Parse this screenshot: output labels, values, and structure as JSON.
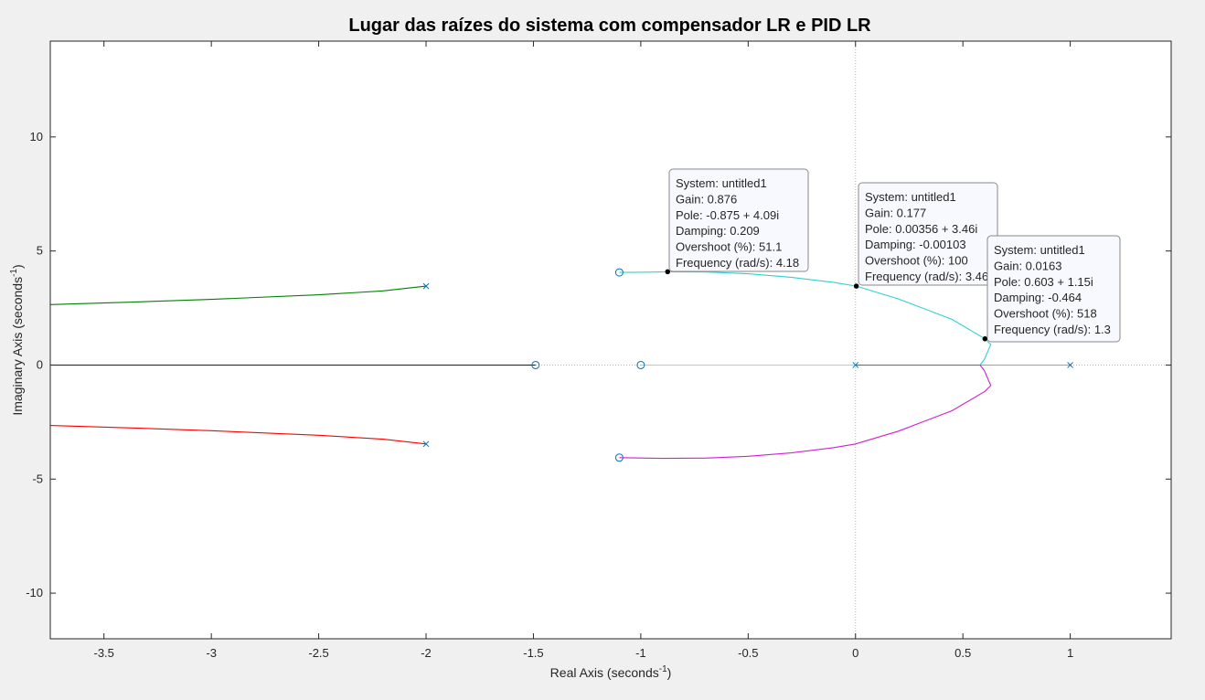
{
  "chart_data": {
    "type": "line",
    "title": "Lugar das raízes do sistema com compensador LR e PID LR",
    "xlabel": "Real Axis (seconds",
    "ylabel": "Imaginary Axis (seconds",
    "label_superscript": "-1",
    "label_close": ")",
    "xlim": [
      -3.75,
      1.47
    ],
    "ylim": [
      -12,
      14.2
    ],
    "x_ticks": [
      -3.5,
      -3,
      -2.5,
      -2,
      -1.5,
      -1,
      -0.5,
      0,
      0.5,
      1
    ],
    "x_tick_labels": [
      "-3.5",
      "-3",
      "-2.5",
      "-2",
      "-1.5",
      "-1",
      "-0.5",
      "0",
      "0.5",
      "1"
    ],
    "y_ticks": [
      -10,
      -5,
      0,
      5,
      10
    ],
    "y_tick_labels": [
      "-10",
      "-5",
      "0",
      "5",
      "10"
    ],
    "grid": false,
    "series": [
      {
        "color": "#0000ff",
        "points": [
          [
            -3.75,
            0
          ],
          [
            -1.49,
            0
          ]
        ]
      },
      {
        "color": "#ccd94a",
        "points": [
          [
            -1.0,
            0
          ],
          [
            0.0,
            0
          ]
        ]
      },
      {
        "color": "#008000",
        "points": [
          [
            -3.75,
            2.65
          ],
          [
            -3.4,
            2.75
          ],
          [
            -3.0,
            2.88
          ],
          [
            -2.5,
            3.08
          ],
          [
            -2.2,
            3.25
          ],
          [
            -2.0,
            3.46
          ]
        ]
      },
      {
        "color": "#ff0000",
        "points": [
          [
            -3.75,
            -2.65
          ],
          [
            -3.4,
            -2.75
          ],
          [
            -3.0,
            -2.88
          ],
          [
            -2.5,
            -3.08
          ],
          [
            -2.2,
            -3.25
          ],
          [
            -2.0,
            -3.46
          ]
        ]
      },
      {
        "color": "#30d0d0",
        "points": [
          [
            -1.1,
            4.06
          ],
          [
            -1.0,
            4.07
          ],
          [
            -0.875,
            4.09
          ],
          [
            -0.7,
            4.08
          ],
          [
            -0.5,
            4.0
          ],
          [
            -0.3,
            3.85
          ],
          [
            -0.1,
            3.62
          ],
          [
            0.00356,
            3.46
          ],
          [
            0.2,
            2.9
          ],
          [
            0.45,
            2.0
          ],
          [
            0.603,
            1.15
          ],
          [
            0.63,
            0.9
          ],
          [
            0.6,
            0.25
          ],
          [
            0.58,
            0.0
          ],
          [
            1.0,
            0.0
          ]
        ]
      },
      {
        "color": "#d020d0",
        "points": [
          [
            -1.1,
            -4.06
          ],
          [
            -0.9,
            -4.09
          ],
          [
            -0.7,
            -4.08
          ],
          [
            -0.5,
            -4.0
          ],
          [
            -0.3,
            -3.85
          ],
          [
            -0.1,
            -3.62
          ],
          [
            0.0,
            -3.46
          ],
          [
            0.2,
            -2.9
          ],
          [
            0.45,
            -2.0
          ],
          [
            0.603,
            -1.15
          ],
          [
            0.63,
            -0.9
          ],
          [
            0.6,
            -0.25
          ],
          [
            0.58,
            0.0
          ],
          [
            0.0,
            0.0
          ]
        ]
      }
    ],
    "poles": [
      [
        -2.0,
        3.46
      ],
      [
        -2.0,
        -3.46
      ],
      [
        0.0,
        0.0
      ],
      [
        1.0,
        0.0
      ]
    ],
    "zeros": [
      [
        -1.49,
        0.0
      ],
      [
        -1.0,
        0.0
      ],
      [
        -1.1,
        4.06
      ],
      [
        -1.1,
        -4.06
      ]
    ],
    "datatips": [
      {
        "point": [
          -0.875,
          4.09
        ],
        "lines": [
          "System: untitled1",
          "Gain: 0.876",
          "Pole: -0.875 + 4.09i",
          "Damping: 0.209",
          "Overshoot (%): 51.1",
          "Frequency (rad/s): 4.18"
        ]
      },
      {
        "point": [
          0.00356,
          3.46
        ],
        "lines": [
          "System: untitled1",
          "Gain: 0.177",
          "Pole: 0.00356 + 3.46i",
          "Damping: -0.00103",
          "Overshoot (%): 100",
          "Frequency (rad/s): 3.46"
        ]
      },
      {
        "point": [
          0.603,
          1.15
        ],
        "lines": [
          "System: untitled1",
          "Gain: 0.0163",
          "Pole: 0.603 + 1.15i",
          "Damping: -0.464",
          "Overshoot (%): 518",
          "Frequency (rad/s): 1.3"
        ]
      }
    ]
  }
}
